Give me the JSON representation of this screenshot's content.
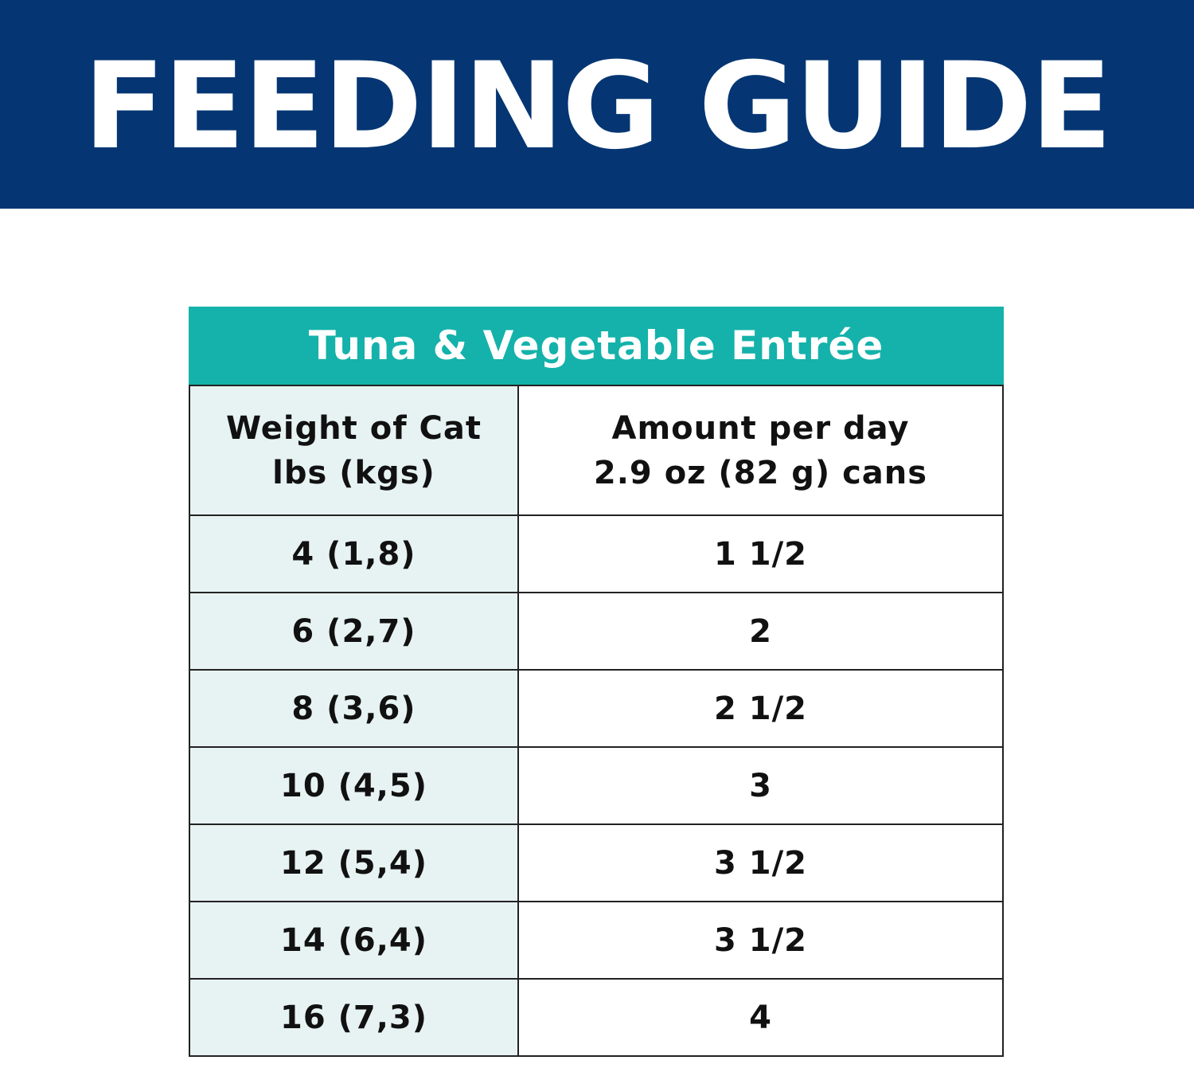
{
  "banner": {
    "title": "FEEDING GUIDE"
  },
  "table": {
    "title": "Tuna & Vegetable Entrée",
    "headers": {
      "weight_line1": "Weight of Cat",
      "weight_line2": "lbs (kgs)",
      "amount_line1": "Amount per day",
      "amount_line2": "2.9 oz (82 g) cans"
    },
    "rows": [
      {
        "weight": "4 (1,8)",
        "amount": "1 1/2"
      },
      {
        "weight": "6 (2,7)",
        "amount": "2"
      },
      {
        "weight": "8 (3,6)",
        "amount": "2 1/2"
      },
      {
        "weight": "10 (4,5)",
        "amount": "3"
      },
      {
        "weight": "12 (5,4)",
        "amount": "3 1/2"
      },
      {
        "weight": "14 (6,4)",
        "amount": "3 1/2"
      },
      {
        "weight": "16 (7,3)",
        "amount": "4"
      }
    ]
  },
  "colors": {
    "banner_bg": "#053673",
    "table_header_bg": "#14b2aa",
    "weight_column_bg": "#e7f3f2",
    "border": "#222222"
  }
}
